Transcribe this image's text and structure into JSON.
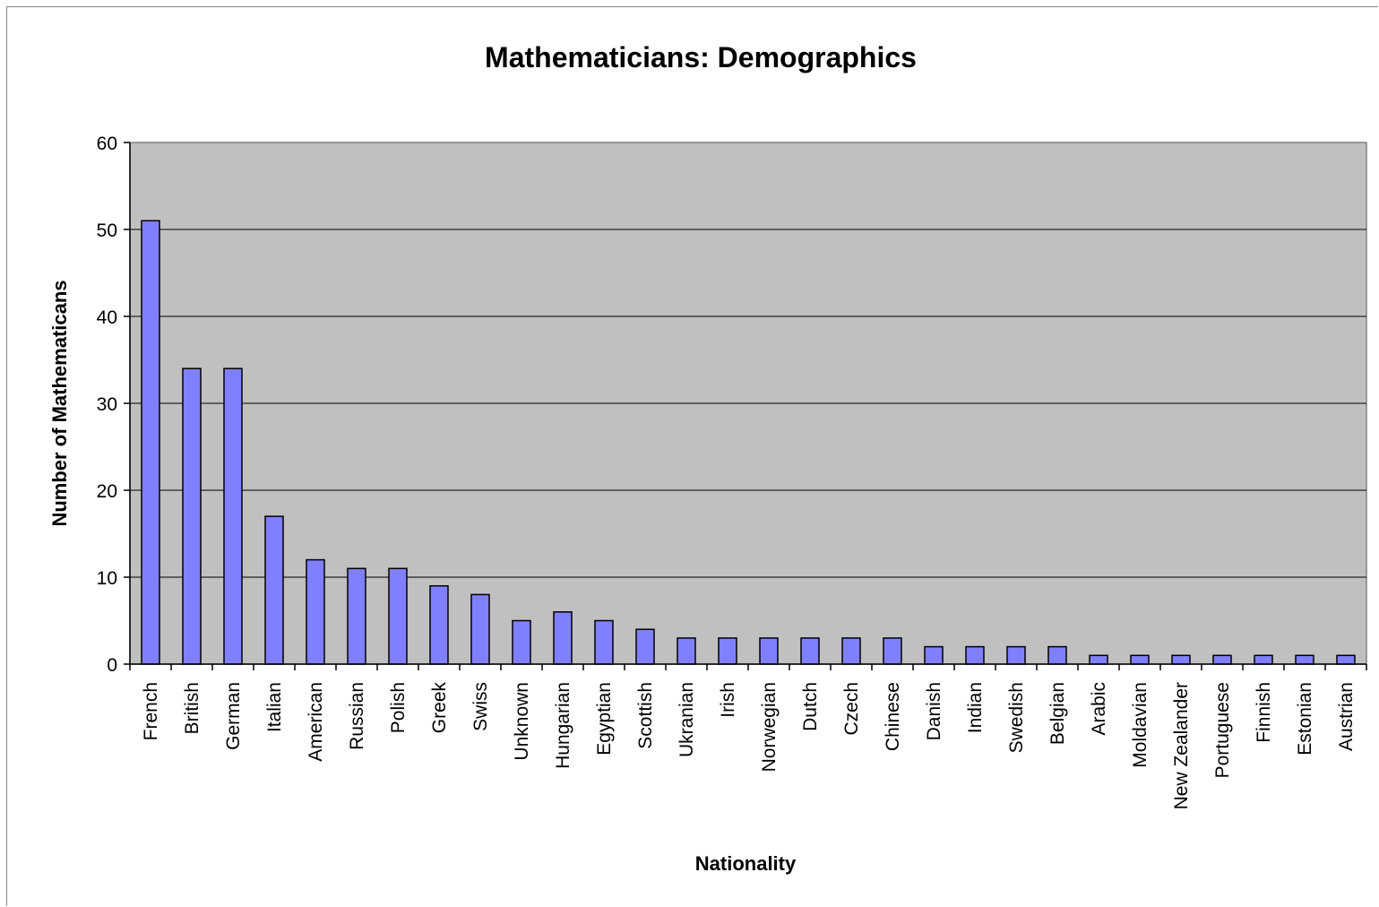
{
  "chart_data": {
    "type": "bar",
    "title": "Mathematicians:  Demographics",
    "xlabel": "Nationality",
    "ylabel": "Number of Mathematicans",
    "ylim": [
      0,
      60
    ],
    "yticks": [
      0,
      10,
      20,
      30,
      40,
      50,
      60
    ],
    "grid": true,
    "categories": [
      "French",
      "British",
      "German",
      "Italian",
      "American",
      "Russian",
      "Polish",
      "Greek",
      "Swiss",
      "Unknown",
      "Hungarian",
      "Egyptian",
      "Scottish",
      "Ukranian",
      "Irish",
      "Norwegian",
      "Dutch",
      "Czech",
      "Chinese",
      "Danish",
      "Indian",
      "Swedish",
      "Belgian",
      "Arabic",
      "Moldavian",
      "New Zealander",
      "Portuguese",
      "Finnish",
      "Estonian",
      "Austrian"
    ],
    "values": [
      51,
      34,
      34,
      17,
      12,
      11,
      11,
      9,
      8,
      5,
      6,
      5,
      4,
      3,
      3,
      3,
      3,
      3,
      3,
      2,
      2,
      2,
      2,
      1,
      1,
      1,
      1,
      1,
      1,
      1
    ],
    "colors": {
      "bar": "#8080ff",
      "plot_bg": "#c0c0c0",
      "grid": "#000000"
    }
  }
}
